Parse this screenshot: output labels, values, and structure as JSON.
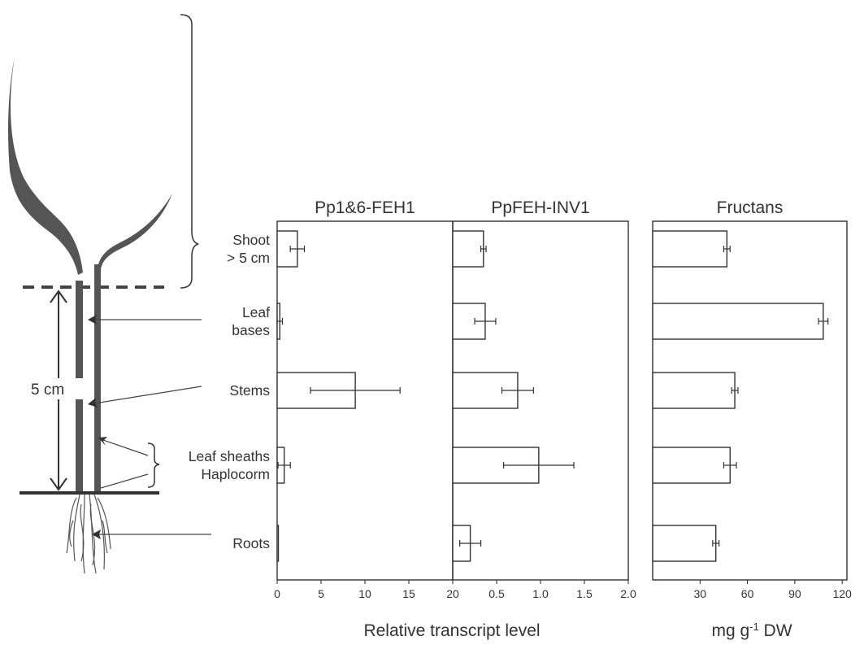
{
  "colors": {
    "ink": "#333333",
    "plant": "#555555",
    "frame": "#222222"
  },
  "plant": {
    "dimension_label": "5 cm",
    "organs": [
      "Shoot\n> 5 cm",
      "Leaf\nbases",
      "Stems",
      "Leaf sheaths\nHaplocorm",
      "Roots"
    ]
  },
  "shared_xlabel": "Relative transcript level",
  "chart_data": [
    {
      "type": "bar",
      "orientation": "horizontal",
      "title": "Pp1&6-FEH1",
      "categories": [
        "Shoot > 5 cm",
        "Leaf bases",
        "Stems",
        "Leaf sheaths Haplocorm",
        "Roots"
      ],
      "values": [
        2.3,
        0.3,
        8.9,
        0.8,
        0.0
      ],
      "errors": [
        0.8,
        0.3,
        5.1,
        0.7,
        0.0
      ],
      "xlim": [
        0,
        20
      ],
      "xticks": [
        "0",
        "5",
        "10",
        "15",
        "20"
      ],
      "xlabel": "Relative transcript level"
    },
    {
      "type": "bar",
      "orientation": "horizontal",
      "title": "PpFEH-INV1",
      "categories": [
        "Shoot > 5 cm",
        "Leaf bases",
        "Stems",
        "Leaf sheaths Haplocorm",
        "Roots"
      ],
      "values": [
        0.35,
        0.37,
        0.74,
        0.98,
        0.2
      ],
      "errors": [
        0.03,
        0.12,
        0.18,
        0.4,
        0.12
      ],
      "xlim": [
        0,
        2.0
      ],
      "xticks": [
        "0.5",
        "1.0",
        "1.5",
        "2.0"
      ],
      "xlabel": "Relative transcript level"
    },
    {
      "type": "bar",
      "orientation": "horizontal",
      "title": "Fructans",
      "categories": [
        "Shoot > 5 cm",
        "Leaf bases",
        "Stems",
        "Leaf sheaths Haplocorm",
        "Roots"
      ],
      "values": [
        47,
        108,
        52,
        49,
        40
      ],
      "errors": [
        2,
        3,
        2,
        4,
        2
      ],
      "xlim": [
        0,
        123
      ],
      "xticks": [
        "30",
        "60",
        "90",
        "120"
      ],
      "xlabel": "mg g-1 DW"
    }
  ]
}
